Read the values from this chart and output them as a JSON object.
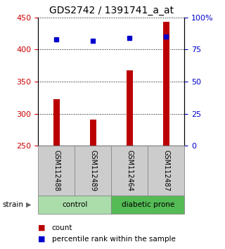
{
  "title": "GDS2742 / 1391741_a_at",
  "samples": [
    "GSM112488",
    "GSM112489",
    "GSM112464",
    "GSM112487"
  ],
  "counts": [
    322,
    291,
    367,
    443
  ],
  "percentile_ranks": [
    83,
    82,
    84,
    85
  ],
  "ylim_left": [
    250,
    450
  ],
  "ylim_right": [
    0,
    100
  ],
  "yticks_left": [
    250,
    300,
    350,
    400,
    450
  ],
  "yticks_right": [
    0,
    25,
    50,
    75,
    100
  ],
  "ytick_labels_right": [
    "0",
    "25",
    "50",
    "75",
    "100%"
  ],
  "bar_color": "#bb0000",
  "dot_color": "#0000cc",
  "bar_bottom": 250,
  "bar_width": 0.18,
  "groups": [
    {
      "label": "control",
      "color": "#aaddaa"
    },
    {
      "label": "diabetic prone",
      "color": "#55bb55"
    }
  ],
  "sample_box_color": "#cccccc",
  "legend_count_color": "#bb0000",
  "legend_pct_color": "#0000cc",
  "left_tick_color": "#cc0000",
  "right_tick_color": "#0000cc"
}
